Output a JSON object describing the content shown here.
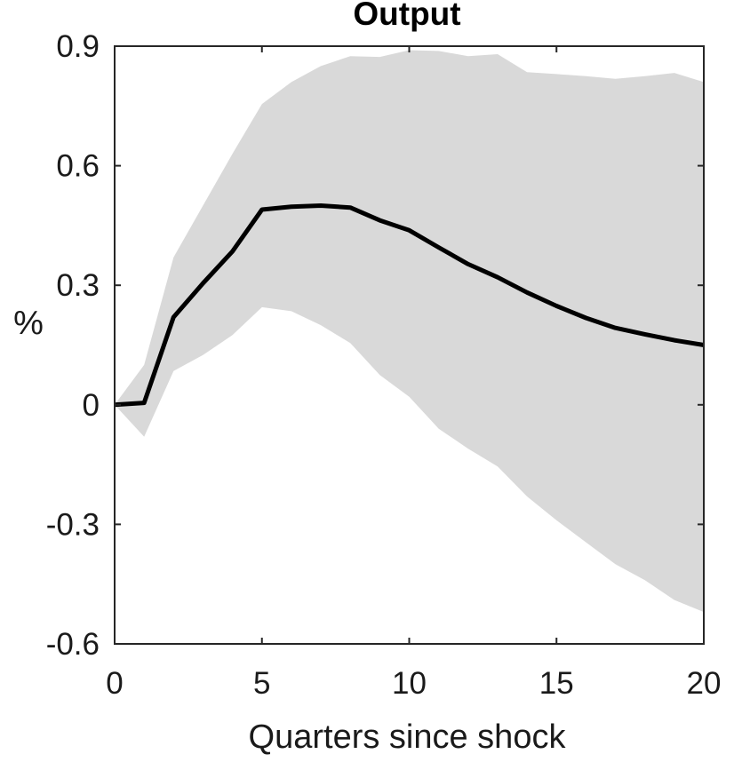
{
  "chart_data": {
    "type": "line",
    "title": "Output",
    "xlabel": "Quarters since shock",
    "ylabel": "%",
    "xlim": [
      0,
      20
    ],
    "ylim": [
      -0.6,
      0.9
    ],
    "xticks": [
      0,
      5,
      10,
      15,
      20
    ],
    "xtick_labels": [
      "0",
      "5",
      "10",
      "15",
      "20"
    ],
    "yticks": [
      -0.6,
      -0.3,
      0,
      0.3,
      0.6,
      0.9
    ],
    "ytick_labels": [
      "-0.6",
      "-0.3",
      "0",
      "0.3",
      "0.6",
      "0.9"
    ],
    "grid": false,
    "colors": {
      "line": "#000000",
      "band": "#d9d9d9",
      "axis": "#262626"
    },
    "x": [
      0,
      1,
      2,
      3,
      4,
      5,
      6,
      7,
      8,
      9,
      10,
      11,
      12,
      13,
      14,
      15,
      16,
      17,
      18,
      19,
      20
    ],
    "series": [
      {
        "values": [
          0.0,
          0.005,
          0.22,
          0.305,
          0.385,
          0.49,
          0.497,
          0.5,
          0.495,
          0.463,
          0.438,
          0.395,
          0.353,
          0.32,
          0.282,
          0.248,
          0.218,
          0.193,
          0.177,
          0.162,
          0.15
        ]
      },
      {
        "type": "band",
        "upper": [
          0.0,
          0.1,
          0.37,
          0.5,
          0.63,
          0.755,
          0.81,
          0.85,
          0.875,
          0.873,
          0.89,
          0.888,
          0.875,
          0.88,
          0.835,
          0.83,
          0.825,
          0.818,
          0.825,
          0.833,
          0.81
        ],
        "lower": [
          0.0,
          -0.08,
          0.085,
          0.125,
          0.175,
          0.245,
          0.235,
          0.2,
          0.155,
          0.075,
          0.02,
          -0.06,
          -0.11,
          -0.155,
          -0.23,
          -0.29,
          -0.345,
          -0.4,
          -0.44,
          -0.49,
          -0.52
        ]
      }
    ]
  }
}
